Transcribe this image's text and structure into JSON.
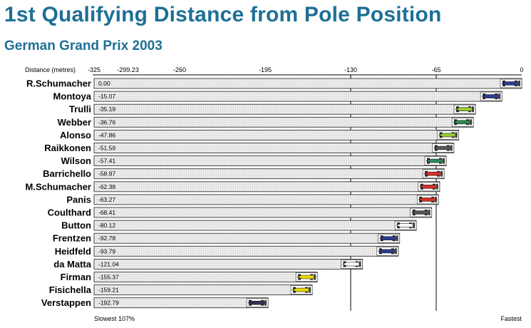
{
  "title": "1st Qualifying Distance from Pole Position",
  "subtitle": "German Grand Prix 2003",
  "chart_data": {
    "type": "bar",
    "orientation": "horizontal",
    "title": "1st Qualifying Distance from Pole Position",
    "subtitle": "German Grand Prix 2003",
    "xlabel": "Distance (metres)",
    "xlim": [
      -325,
      0
    ],
    "x_ticks": [
      "-325",
      "-299.23",
      "-260",
      "-195",
      "-130",
      "-65",
      "0"
    ],
    "x_tick_values": [
      -325,
      -299.23,
      -260,
      -195,
      -130,
      -65,
      0
    ],
    "footer_left": "Slowest 107%",
    "footer_right": "Fastest",
    "grid": "vertical lines at -130 and -65",
    "categories": [
      "R.Schumacher",
      "Montoya",
      "Trulli",
      "Webber",
      "Alonso",
      "Raikkonen",
      "Wilson",
      "Barrichello",
      "M.Schumacher",
      "Panis",
      "Coulthard",
      "Button",
      "Frentzen",
      "Heidfeld",
      "da Matta",
      "Firman",
      "Fisichella",
      "Verstappen"
    ],
    "values": [
      0.0,
      -15.07,
      -35.19,
      -36.76,
      -47.86,
      -51.59,
      -57.41,
      -58.97,
      -62.38,
      -63.27,
      -68.41,
      -80.12,
      -92.78,
      -93.79,
      -121.04,
      -155.37,
      -159.21,
      -192.79
    ],
    "value_labels": [
      "0.00",
      "-15.07",
      "-35.19",
      "-36.76",
      "-47.86",
      "-51.59",
      "-57.41",
      "-58.97",
      "-62.38",
      "-63.27",
      "-68.41",
      "-80.12",
      "-92.78",
      "-93.79",
      "-121.04",
      "-155.37",
      "-159.21",
      "-192.79"
    ],
    "car_colors": [
      "#2a3d8f",
      "#2a3d8f",
      "#9acd32",
      "#2e8b57",
      "#9acd32",
      "#555555",
      "#2e8b57",
      "#d93025",
      "#d93025",
      "#d93025",
      "#555555",
      "#ffffff",
      "#2a3d8f",
      "#2a3d8f",
      "#ffffff",
      "#e8d800",
      "#e8d800",
      "#333355"
    ]
  }
}
